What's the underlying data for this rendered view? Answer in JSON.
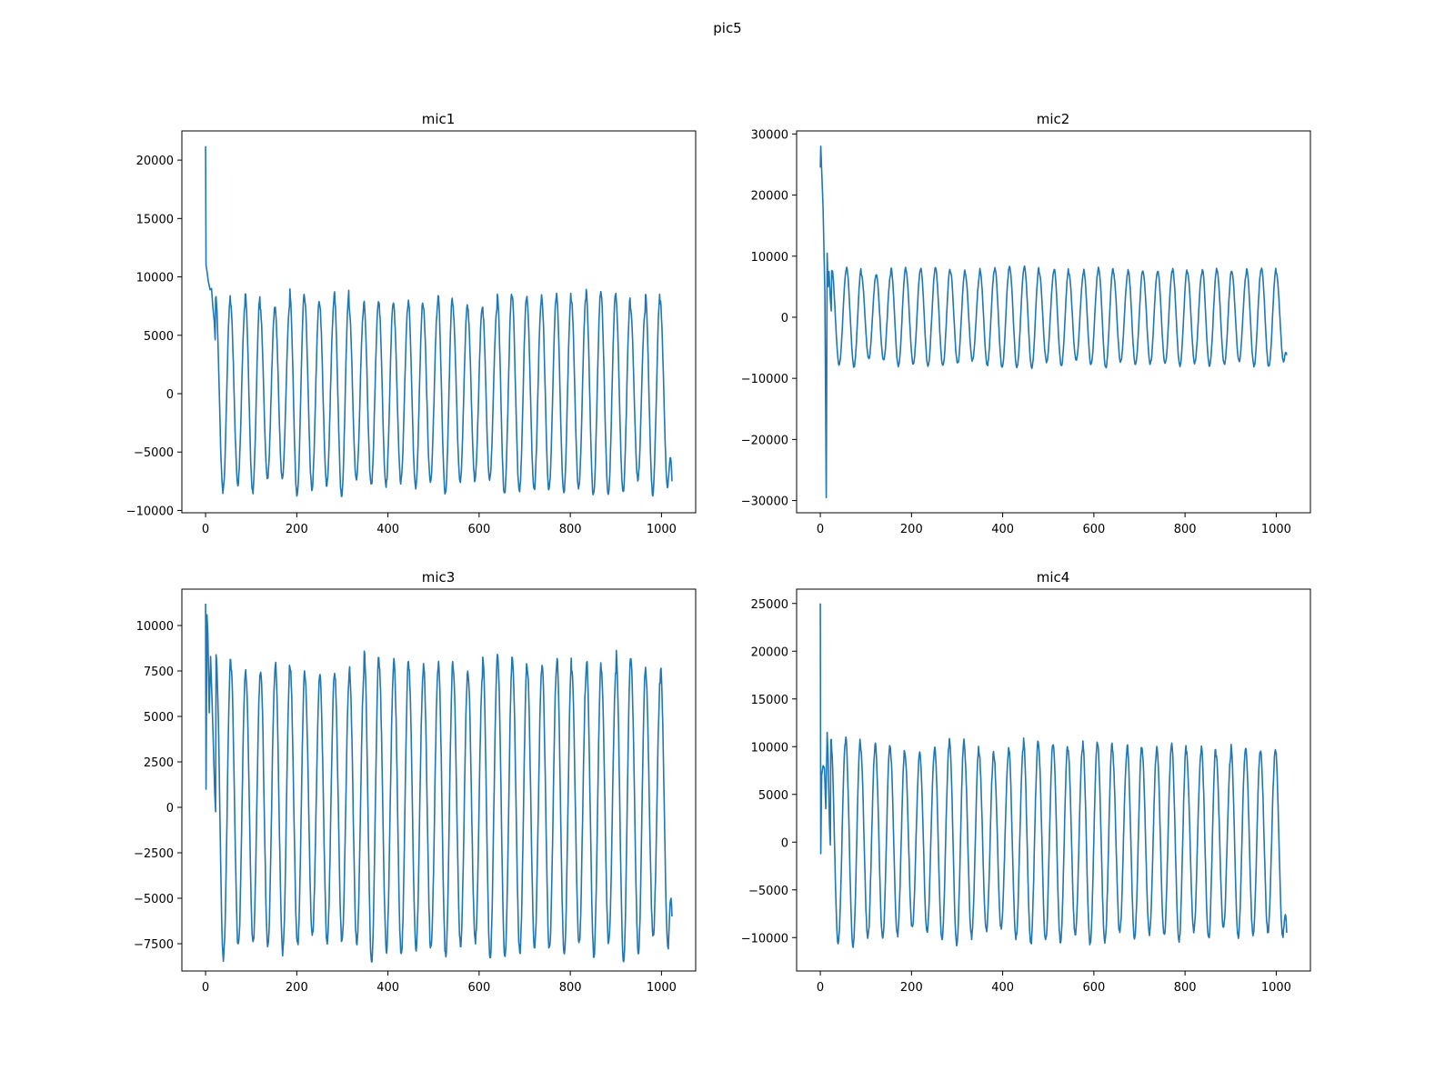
{
  "figure": {
    "title": "pic5"
  },
  "colors": {
    "line": "#1f77b4"
  },
  "chart_data": [
    {
      "type": "line",
      "title": "mic1",
      "xlabel": "",
      "ylabel": "",
      "xlim": [
        -52,
        1075
      ],
      "ylim": [
        -10200,
        22500
      ],
      "xticks": [
        0,
        200,
        400,
        600,
        800,
        1000
      ],
      "yticks": [
        -10000,
        -5000,
        0,
        5000,
        10000,
        15000,
        20000
      ],
      "ytick_labels": [
        "−10000",
        "−5000",
        "0",
        "5000",
        "10000",
        "15000",
        "20000"
      ],
      "grid": false,
      "series": [
        {
          "length": 1024,
          "samples_per_cycle": 32.5,
          "peaks": [
            [
              0,
              21200
            ],
            [
              1,
              11000
            ],
            [
              3,
              10500
            ],
            [
              6,
              9600
            ],
            [
              10,
              8900
            ],
            [
              13,
              9000
            ],
            [
              16,
              7400
            ],
            [
              19,
              6200
            ]
          ],
          "steady": {
            "start": 22,
            "mean": 0,
            "amplitude": 8000,
            "min": -8800,
            "max": 9400,
            "end_value": -7500
          }
        }
      ]
    },
    {
      "type": "line",
      "title": "mic2",
      "xlabel": "",
      "ylabel": "",
      "xlim": [
        -52,
        1075
      ],
      "ylim": [
        -32000,
        30500
      ],
      "xticks": [
        0,
        200,
        400,
        600,
        800,
        1000
      ],
      "yticks": [
        -30000,
        -20000,
        -10000,
        0,
        10000,
        20000,
        30000
      ],
      "ytick_labels": [
        "−30000",
        "−20000",
        "−10000",
        "0",
        "10000",
        "20000",
        "30000"
      ],
      "grid": false,
      "series": [
        {
          "length": 1024,
          "samples_per_cycle": 32.5,
          "peaks": [
            [
              0,
              24500
            ],
            [
              1,
              28000
            ],
            [
              3,
              24000
            ],
            [
              6,
              18000
            ],
            [
              10,
              4000
            ],
            [
              13,
              -29500
            ],
            [
              15,
              10500
            ],
            [
              17,
              5000
            ],
            [
              19,
              7500
            ],
            [
              22,
              3000
            ]
          ],
          "steady": {
            "start": 25,
            "mean": 0,
            "amplitude": 7500,
            "min": -9000,
            "max": 8800,
            "end_value": -6200
          }
        }
      ]
    },
    {
      "type": "line",
      "title": "mic3",
      "xlabel": "",
      "ylabel": "",
      "xlim": [
        -52,
        1075
      ],
      "ylim": [
        -9000,
        12000
      ],
      "xticks": [
        0,
        200,
        400,
        600,
        800,
        1000
      ],
      "yticks": [
        -7500,
        -5000,
        -2500,
        0,
        2500,
        5000,
        7500,
        10000
      ],
      "ytick_labels": [
        "−7500",
        "−5000",
        "−2500",
        "0",
        "2500",
        "5000",
        "7500",
        "10000"
      ],
      "grid": false,
      "series": [
        {
          "length": 1024,
          "samples_per_cycle": 32.5,
          "peaks": [
            [
              0,
              11200
            ],
            [
              1,
              1000
            ],
            [
              3,
              10600
            ],
            [
              5,
              9500
            ],
            [
              8,
              5200
            ],
            [
              11,
              8300
            ],
            [
              14,
              6000
            ],
            [
              17,
              3500
            ],
            [
              20,
              800
            ]
          ],
          "steady": {
            "start": 23,
            "mean": 0,
            "amplitude": 7800,
            "min": -8500,
            "max": 8700,
            "end_value": -6000
          }
        }
      ]
    },
    {
      "type": "line",
      "title": "mic4",
      "xlabel": "",
      "ylabel": "",
      "xlim": [
        -52,
        1075
      ],
      "ylim": [
        -13500,
        26500
      ],
      "xticks": [
        0,
        200,
        400,
        600,
        800,
        1000
      ],
      "yticks": [
        -10000,
        -5000,
        0,
        5000,
        10000,
        15000,
        20000,
        25000
      ],
      "ytick_labels": [
        "−10000",
        "−5000",
        "0",
        "5000",
        "10000",
        "15000",
        "20000",
        "25000"
      ],
      "grid": false,
      "series": [
        {
          "length": 1024,
          "samples_per_cycle": 32.5,
          "peaks": [
            [
              0,
              25000
            ],
            [
              1,
              -1200
            ],
            [
              3,
              7000
            ],
            [
              6,
              8000
            ],
            [
              9,
              7800
            ],
            [
              12,
              3500
            ],
            [
              15,
              11500
            ],
            [
              17,
              9000
            ],
            [
              20,
              2000
            ]
          ],
          "steady": {
            "start": 23,
            "mean": 0,
            "amplitude": 10000,
            "min": -11500,
            "max": 11000,
            "end_value": -9500
          }
        }
      ]
    }
  ]
}
